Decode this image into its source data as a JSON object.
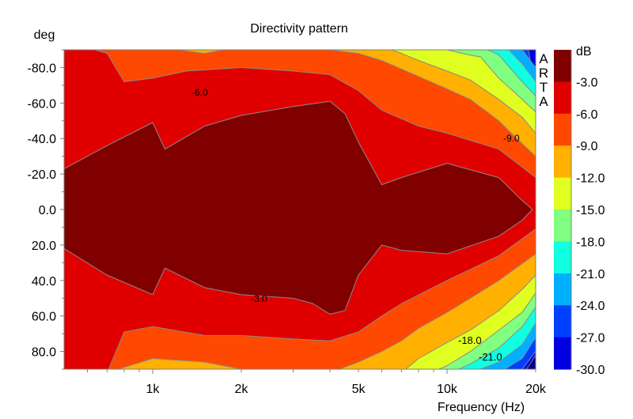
{
  "chart_data": {
    "type": "heatmap",
    "subtype": "filled-contour",
    "title": "Directivity pattern",
    "xlabel": "Frequency (Hz)",
    "ylabel": "deg",
    "xscale": "log",
    "xlim": [
      500,
      20000
    ],
    "ylim": [
      -90,
      90
    ],
    "x_ticks": [
      {
        "value": 1000,
        "label": "1k"
      },
      {
        "value": 2000,
        "label": "2k"
      },
      {
        "value": 5000,
        "label": "5k"
      },
      {
        "value": 10000,
        "label": "10k"
      },
      {
        "value": 20000,
        "label": "20k"
      }
    ],
    "y_ticks": [
      {
        "value": -80,
        "label": "-80.0"
      },
      {
        "value": -60,
        "label": "-60.0"
      },
      {
        "value": -40,
        "label": "-40.0"
      },
      {
        "value": -20,
        "label": "-20.0"
      },
      {
        "value": 0,
        "label": "0.0"
      },
      {
        "value": 20,
        "label": "20.0"
      },
      {
        "value": 40,
        "label": "40.0"
      },
      {
        "value": 60,
        "label": "60.0"
      },
      {
        "value": 80,
        "label": "80.0"
      }
    ],
    "colorbar": {
      "unit": "dB",
      "labels": [
        "-3.0",
        "-6.0",
        "-9.0",
        "-12.0",
        "-15.0",
        "-18.0",
        "-21.0",
        "-24.0",
        "-27.0",
        "-30.0"
      ],
      "bands": [
        {
          "range": [
            -3,
            0
          ],
          "color": "#800000"
        },
        {
          "range": [
            -6,
            -3
          ],
          "color": "#e00000"
        },
        {
          "range": [
            -9,
            -6
          ],
          "color": "#ff4800"
        },
        {
          "range": [
            -12,
            -9
          ],
          "color": "#ffb000"
        },
        {
          "range": [
            -15,
            -12
          ],
          "color": "#e0ff20"
        },
        {
          "range": [
            -18,
            -15
          ],
          "color": "#80ff80"
        },
        {
          "range": [
            -21,
            -18
          ],
          "color": "#10ffe0"
        },
        {
          "range": [
            -24,
            -21
          ],
          "color": "#00b0ff"
        },
        {
          "range": [
            -27,
            -24
          ],
          "color": "#0040ff"
        },
        {
          "range": [
            -30,
            -27
          ],
          "color": "#0000e0"
        }
      ],
      "below_min_color": "#000080"
    },
    "below_min_region": [
      [
        17500,
        95
      ],
      [
        20000,
        95
      ],
      [
        20000,
        82
      ],
      [
        19000,
        88
      ]
    ],
    "contours": [
      {
        "level": -27,
        "color": "#0040ff",
        "top": [
          [
            500,
            -95
          ],
          [
            18500,
            -95
          ],
          [
            19000,
            -88
          ],
          [
            19500,
            -75
          ],
          [
            20000,
            -70
          ]
        ],
        "bottom": [
          [
            500,
            95
          ],
          [
            16500,
            95
          ],
          [
            18000,
            90
          ],
          [
            20000,
            80
          ]
        ]
      },
      {
        "level": -24,
        "color": "#00b0ff",
        "top": [
          [
            500,
            -95
          ],
          [
            17000,
            -95
          ],
          [
            18000,
            -90
          ],
          [
            20000,
            -80
          ]
        ],
        "bottom": [
          [
            500,
            95
          ],
          [
            13000,
            95
          ],
          [
            15000,
            92
          ],
          [
            18000,
            84
          ],
          [
            20000,
            72
          ]
        ]
      },
      {
        "level": -21,
        "color": "#10ffe0",
        "top": [
          [
            500,
            -95
          ],
          [
            15000,
            -95
          ],
          [
            16000,
            -91
          ],
          [
            18000,
            -82
          ],
          [
            20000,
            -72
          ]
        ],
        "bottom": [
          [
            500,
            95
          ],
          [
            10000,
            95
          ],
          [
            12000,
            92
          ],
          [
            15000,
            86
          ],
          [
            18000,
            76
          ],
          [
            20000,
            64
          ]
        ]
      },
      {
        "level": -18,
        "color": "#80ff80",
        "top": [
          [
            500,
            -95
          ],
          [
            12000,
            -95
          ],
          [
            13000,
            -92
          ],
          [
            15000,
            -87
          ],
          [
            18000,
            -72
          ],
          [
            20000,
            -64
          ]
        ],
        "bottom": [
          [
            500,
            95
          ],
          [
            9000,
            95
          ],
          [
            10000,
            93
          ],
          [
            12000,
            87
          ],
          [
            15000,
            78
          ],
          [
            18000,
            66
          ],
          [
            20000,
            55
          ]
        ]
      },
      {
        "level": -15,
        "color": "#e0ff20",
        "top": [
          [
            500,
            -95
          ],
          [
            8000,
            -95
          ],
          [
            10000,
            -90
          ],
          [
            12000,
            -87
          ],
          [
            13000,
            -86
          ],
          [
            15000,
            -74
          ],
          [
            18000,
            -62
          ],
          [
            20000,
            -55
          ]
        ],
        "bottom": [
          [
            500,
            95
          ],
          [
            8000,
            95
          ],
          [
            10000,
            88
          ],
          [
            12000,
            80
          ],
          [
            15000,
            68
          ],
          [
            18000,
            58
          ],
          [
            20000,
            47
          ]
        ]
      },
      {
        "level": -12,
        "color": "#ffb000",
        "top": [
          [
            500,
            -95
          ],
          [
            5000,
            -95
          ],
          [
            6000,
            -92
          ],
          [
            7000,
            -88
          ],
          [
            8000,
            -84
          ],
          [
            10000,
            -78
          ],
          [
            12000,
            -73
          ],
          [
            15000,
            -62
          ],
          [
            18000,
            -52
          ],
          [
            20000,
            -43
          ]
        ],
        "bottom": [
          [
            500,
            95
          ],
          [
            6000,
            95
          ],
          [
            7000,
            92
          ],
          [
            8000,
            84
          ],
          [
            10000,
            75
          ],
          [
            12000,
            68
          ],
          [
            15000,
            57
          ],
          [
            18000,
            45
          ],
          [
            20000,
            37
          ]
        ]
      },
      {
        "level": -9,
        "color": "#ff4800",
        "top": [
          [
            500,
            -95
          ],
          [
            1000,
            -92
          ],
          [
            1500,
            -88
          ],
          [
            2000,
            -92
          ],
          [
            3000,
            -92
          ],
          [
            4000,
            -90
          ],
          [
            5000,
            -88
          ],
          [
            6000,
            -84
          ],
          [
            8000,
            -75
          ],
          [
            10000,
            -68
          ],
          [
            12000,
            -62
          ],
          [
            15000,
            -50
          ],
          [
            17000,
            -41
          ],
          [
            20000,
            -30
          ]
        ],
        "bottom": [
          [
            500,
            95
          ],
          [
            700,
            92
          ],
          [
            1000,
            84
          ],
          [
            1500,
            86
          ],
          [
            2000,
            90
          ],
          [
            3000,
            90
          ],
          [
            4000,
            92
          ],
          [
            5000,
            86
          ],
          [
            6000,
            80
          ],
          [
            7000,
            74
          ],
          [
            8000,
            67
          ],
          [
            10000,
            58
          ],
          [
            12000,
            50
          ],
          [
            15000,
            40
          ],
          [
            20000,
            25
          ]
        ]
      },
      {
        "level": -6,
        "color": "#e00000",
        "top": [
          [
            500,
            -95
          ],
          [
            700,
            -88
          ],
          [
            800,
            -72
          ],
          [
            1000,
            -74
          ],
          [
            1300,
            -78
          ],
          [
            2000,
            -80
          ],
          [
            3000,
            -78
          ],
          [
            4000,
            -76
          ],
          [
            5000,
            -67
          ],
          [
            6000,
            -56
          ],
          [
            8000,
            -47
          ],
          [
            10000,
            -43
          ],
          [
            15000,
            -34
          ],
          [
            20000,
            -18
          ]
        ],
        "bottom": [
          [
            500,
            95
          ],
          [
            700,
            92
          ],
          [
            800,
            69
          ],
          [
            1000,
            66
          ],
          [
            1500,
            71
          ],
          [
            2000,
            71
          ],
          [
            3000,
            73
          ],
          [
            4000,
            74
          ],
          [
            5000,
            69
          ],
          [
            6000,
            60
          ],
          [
            7000,
            53
          ],
          [
            10000,
            40
          ],
          [
            15000,
            26
          ],
          [
            20000,
            11
          ]
        ]
      },
      {
        "level": -3,
        "color": "#800000",
        "top": [
          [
            500,
            -23
          ],
          [
            700,
            -36
          ],
          [
            1000,
            -49
          ],
          [
            1100,
            -34
          ],
          [
            1500,
            -47
          ],
          [
            2000,
            -53
          ],
          [
            3000,
            -58
          ],
          [
            4000,
            -61
          ],
          [
            4500,
            -54
          ],
          [
            5000,
            -38
          ],
          [
            6000,
            -14
          ],
          [
            7000,
            -18
          ],
          [
            10000,
            -26
          ],
          [
            15000,
            -18
          ],
          [
            18000,
            -5
          ],
          [
            19500,
            0
          ]
        ],
        "bottom": [
          [
            500,
            22
          ],
          [
            700,
            37
          ],
          [
            1000,
            48
          ],
          [
            1100,
            33
          ],
          [
            1500,
            44
          ],
          [
            2000,
            48
          ],
          [
            3000,
            50
          ],
          [
            3500,
            53
          ],
          [
            4000,
            59
          ],
          [
            4500,
            57
          ],
          [
            5000,
            37
          ],
          [
            6000,
            20
          ],
          [
            7000,
            23
          ],
          [
            10000,
            25
          ],
          [
            15000,
            15
          ],
          [
            18000,
            6
          ],
          [
            19500,
            0
          ]
        ]
      }
    ],
    "contour_labels": [
      "-6.0",
      "-9.0",
      "-3.0",
      "-18.0",
      "-21.0"
    ],
    "watermark": "ARTA"
  }
}
